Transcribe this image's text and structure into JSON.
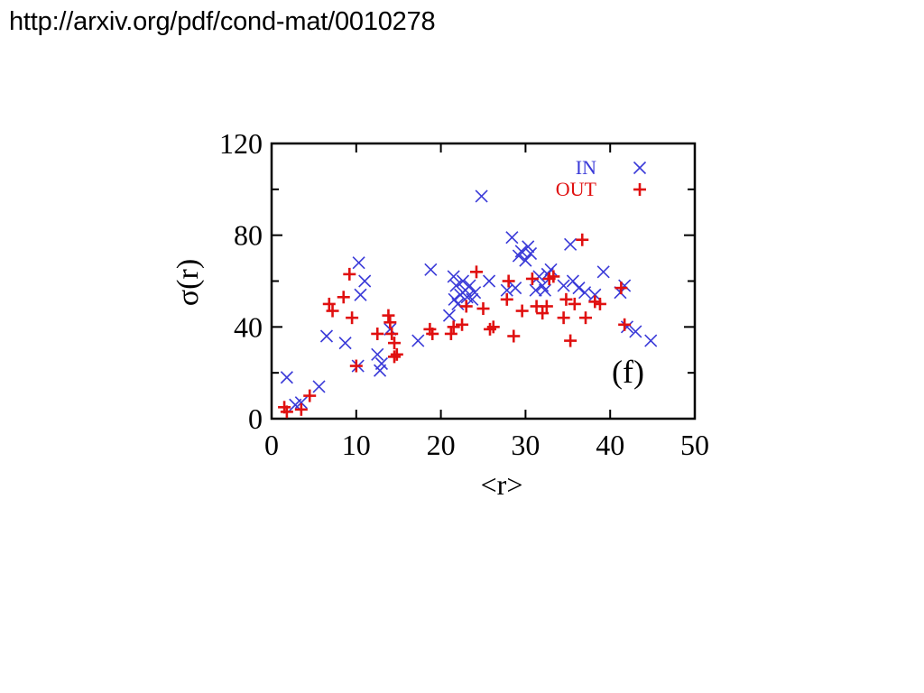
{
  "source_url": "http://arxiv.org/pdf/cond-mat/0010278",
  "colors": {
    "in": "#3a3ad8",
    "out": "#e01010",
    "axis": "#000000",
    "background": "#ffffff"
  },
  "chart_data": {
    "type": "scatter",
    "title": "",
    "panel_label": "(f)",
    "xlabel": "<r>",
    "ylabel": "σ(r)",
    "xlim": [
      0,
      50
    ],
    "ylim": [
      0,
      120
    ],
    "x_ticks": [
      0,
      10,
      20,
      30,
      40,
      50
    ],
    "y_ticks": [
      0,
      40,
      80,
      120
    ],
    "grid": false,
    "legend_position": "top-right",
    "series": [
      {
        "name": "IN",
        "marker": "x",
        "color_key": "in",
        "points": [
          [
            1.8,
            18
          ],
          [
            2.8,
            6
          ],
          [
            3.5,
            7
          ],
          [
            5.6,
            14
          ],
          [
            6.5,
            36
          ],
          [
            8.7,
            33
          ],
          [
            10.2,
            23
          ],
          [
            10.3,
            68
          ],
          [
            10.5,
            54
          ],
          [
            11.0,
            60
          ],
          [
            12.5,
            28
          ],
          [
            12.8,
            21
          ],
          [
            13.0,
            24
          ],
          [
            14.0,
            39
          ],
          [
            17.3,
            34
          ],
          [
            18.8,
            65
          ],
          [
            21.0,
            45
          ],
          [
            21.5,
            62
          ],
          [
            21.6,
            52
          ],
          [
            21.8,
            58
          ],
          [
            22.0,
            50
          ],
          [
            22.3,
            54
          ],
          [
            22.6,
            60
          ],
          [
            22.9,
            56
          ],
          [
            23.1,
            53
          ],
          [
            23.4,
            58
          ],
          [
            23.7,
            52
          ],
          [
            24.0,
            55
          ],
          [
            24.8,
            97
          ],
          [
            25.7,
            60
          ],
          [
            27.8,
            56
          ],
          [
            28.4,
            79
          ],
          [
            28.8,
            57
          ],
          [
            29.2,
            71
          ],
          [
            29.5,
            73
          ],
          [
            30.0,
            69
          ],
          [
            30.3,
            75
          ],
          [
            30.6,
            72
          ],
          [
            31.2,
            56
          ],
          [
            31.6,
            62
          ],
          [
            32.0,
            58
          ],
          [
            32.3,
            56
          ],
          [
            32.6,
            63
          ],
          [
            33.0,
            65
          ],
          [
            34.5,
            58
          ],
          [
            35.3,
            76
          ],
          [
            35.6,
            60
          ],
          [
            36.3,
            57
          ],
          [
            37.0,
            55
          ],
          [
            38.2,
            54
          ],
          [
            39.2,
            64
          ],
          [
            41.2,
            55
          ],
          [
            41.7,
            58
          ],
          [
            42.0,
            40
          ],
          [
            43.0,
            38
          ],
          [
            44.8,
            34
          ]
        ]
      },
      {
        "name": "OUT",
        "marker": "+",
        "color_key": "out",
        "points": [
          [
            1.5,
            5
          ],
          [
            1.8,
            3
          ],
          [
            3.5,
            4
          ],
          [
            4.5,
            10
          ],
          [
            6.8,
            50
          ],
          [
            7.2,
            47
          ],
          [
            8.5,
            53
          ],
          [
            9.2,
            63
          ],
          [
            9.5,
            44
          ],
          [
            10.0,
            23
          ],
          [
            12.5,
            37
          ],
          [
            13.8,
            45
          ],
          [
            14.0,
            42
          ],
          [
            14.2,
            37
          ],
          [
            14.5,
            27
          ],
          [
            14.5,
            33
          ],
          [
            14.8,
            28
          ],
          [
            18.7,
            39
          ],
          [
            19.0,
            37
          ],
          [
            21.2,
            37
          ],
          [
            21.5,
            40
          ],
          [
            22.5,
            41
          ],
          [
            23.0,
            49
          ],
          [
            24.2,
            64
          ],
          [
            25.0,
            48
          ],
          [
            25.8,
            39
          ],
          [
            26.2,
            40
          ],
          [
            27.8,
            52
          ],
          [
            28.0,
            60
          ],
          [
            28.6,
            36
          ],
          [
            29.6,
            47
          ],
          [
            30.8,
            61
          ],
          [
            31.3,
            49
          ],
          [
            32.0,
            46
          ],
          [
            32.5,
            49
          ],
          [
            32.8,
            61
          ],
          [
            33.3,
            62
          ],
          [
            34.5,
            44
          ],
          [
            34.8,
            52
          ],
          [
            35.3,
            34
          ],
          [
            35.8,
            50
          ],
          [
            36.7,
            78
          ],
          [
            37.1,
            44
          ],
          [
            38.2,
            51
          ],
          [
            38.8,
            50
          ],
          [
            41.3,
            57
          ],
          [
            41.7,
            41
          ]
        ]
      }
    ]
  }
}
